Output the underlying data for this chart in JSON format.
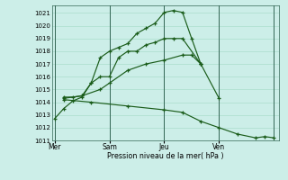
{
  "bg_color": "#cceee8",
  "grid_color": "#aaddcc",
  "line_color": "#1a5c1a",
  "vline_color": "#336655",
  "xlabel": "Pression niveau de la mer( hPa )",
  "ylim": [
    1011,
    1021.6
  ],
  "yticks": [
    1011,
    1012,
    1013,
    1014,
    1015,
    1016,
    1017,
    1018,
    1019,
    1020,
    1021
  ],
  "day_vlines": [
    0,
    3,
    6,
    9,
    12
  ],
  "xtick_pos": [
    0,
    3,
    6,
    9
  ],
  "xtick_labels": [
    "Mer",
    "Sam",
    "Jeu",
    "Ven"
  ],
  "line1_x": [
    0,
    0.5,
    1.0,
    1.5,
    2.0,
    2.5,
    3.0,
    3.5,
    4.0,
    4.5,
    5.0,
    5.5,
    6.0,
    6.5,
    7.0,
    7.5,
    8.0
  ],
  "line1_y": [
    1012.7,
    1013.5,
    1014.1,
    1014.4,
    1015.5,
    1017.5,
    1018.0,
    1018.3,
    1018.6,
    1019.4,
    1019.8,
    1020.2,
    1021.05,
    1021.2,
    1021.05,
    1019.0,
    1017.0
  ],
  "line2_x": [
    0.5,
    1.0,
    1.5,
    2.0,
    2.5,
    3.0,
    3.5,
    4.0,
    4.5,
    5.0,
    5.5,
    6.0,
    6.5,
    7.0,
    8.0
  ],
  "line2_y": [
    1014.4,
    1014.4,
    1014.5,
    1015.5,
    1016.0,
    1016.0,
    1017.5,
    1018.0,
    1018.0,
    1018.5,
    1018.7,
    1019.0,
    1019.0,
    1019.0,
    1017.0
  ],
  "line3_x": [
    0.5,
    1.5,
    2.5,
    3.0,
    4.0,
    5.0,
    6.0,
    7.0,
    7.5,
    8.0,
    9.0
  ],
  "line3_y": [
    1014.3,
    1014.5,
    1015.0,
    1015.5,
    1016.5,
    1017.0,
    1017.3,
    1017.7,
    1017.7,
    1017.0,
    1014.3
  ],
  "line4_x": [
    0.5,
    2.0,
    4.0,
    6.0,
    7.0,
    8.0,
    9.0,
    10.0,
    11.0,
    11.5,
    12.0
  ],
  "line4_y": [
    1014.2,
    1014.0,
    1013.7,
    1013.4,
    1013.2,
    1012.5,
    1012.0,
    1011.5,
    1011.2,
    1011.3,
    1011.2
  ]
}
